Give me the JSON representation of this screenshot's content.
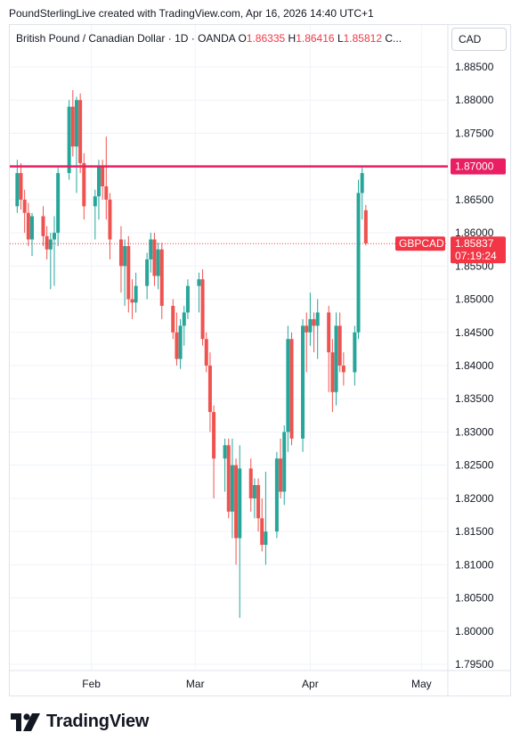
{
  "header": {
    "credit": "PoundSterlingLive created with TradingView.com, Apr 16, 2026 14:40 UTC+1"
  },
  "legend": {
    "symbol": "British Pound / Canadian Dollar · 1D · OANDA",
    "open_label": "O",
    "open_value": "1.86335",
    "high_label": "H",
    "high_value": "1.86416",
    "low_label": "L",
    "low_value": "1.85812",
    "close_label": "C..."
  },
  "currency": "CAD",
  "price_line": {
    "value": 1.87,
    "label": "1.87000",
    "color": "#e91e63"
  },
  "last_price": {
    "ticker": "GBPCAD",
    "value": 1.85837,
    "label": "1.85837",
    "countdown": "07:19:24",
    "color": "#f23645"
  },
  "colors": {
    "up": "#26a69a",
    "down": "#ef5350",
    "grid": "#f0f3fa",
    "text": "#131722"
  },
  "logo": {
    "text": "TradingView"
  },
  "chart_data": {
    "type": "candlestick",
    "title": "British Pound / Canadian Dollar · 1D · OANDA",
    "ylim": [
      1.795,
      1.885
    ],
    "y_ticks": [
      "1.88500",
      "1.88000",
      "1.87500",
      "1.87000",
      "1.86500",
      "1.86000",
      "1.85500",
      "1.85000",
      "1.84500",
      "1.84000",
      "1.83500",
      "1.83000",
      "1.82500",
      "1.82000",
      "1.81500",
      "1.81000",
      "1.80500",
      "1.80000",
      "1.79500"
    ],
    "x_ticks": [
      {
        "label": "Feb",
        "x": "2026-02-01"
      },
      {
        "label": "Mar",
        "x": "2026-03-01"
      },
      {
        "label": "Apr",
        "x": "2026-04-01"
      },
      {
        "label": "May",
        "x": "2026-05-01"
      }
    ],
    "grid": true,
    "candles": [
      [
        "2026-01-12",
        1.864,
        1.871,
        1.863,
        1.869
      ],
      [
        "2026-01-13",
        1.869,
        1.8705,
        1.8635,
        1.865
      ],
      [
        "2026-01-14",
        1.865,
        1.8665,
        1.86,
        1.863
      ],
      [
        "2026-01-15",
        1.863,
        1.8645,
        1.858,
        1.859
      ],
      [
        "2026-01-16",
        1.859,
        1.863,
        1.8565,
        1.8625
      ],
      [
        "2026-01-19",
        1.8625,
        1.864,
        1.858,
        1.8595
      ],
      [
        "2026-01-20",
        1.8595,
        1.861,
        1.856,
        1.8575
      ],
      [
        "2026-01-21",
        1.8575,
        1.86,
        1.8515,
        1.859
      ],
      [
        "2026-01-22",
        1.859,
        1.8625,
        1.852,
        1.86
      ],
      [
        "2026-01-23",
        1.86,
        1.87,
        1.858,
        1.869
      ],
      [
        "2026-01-26",
        1.869,
        1.88,
        1.868,
        1.879
      ],
      [
        "2026-01-27",
        1.879,
        1.8815,
        1.8715,
        1.873
      ],
      [
        "2026-01-28",
        1.873,
        1.8805,
        1.866,
        1.88
      ],
      [
        "2026-01-29",
        1.88,
        1.881,
        1.869,
        1.8705
      ],
      [
        "2026-01-30",
        1.8705,
        1.872,
        1.862,
        1.864
      ],
      [
        "2026-02-02",
        1.864,
        1.8665,
        1.859,
        1.8655
      ],
      [
        "2026-02-03",
        1.8655,
        1.871,
        1.862,
        1.87
      ],
      [
        "2026-02-04",
        1.87,
        1.871,
        1.865,
        1.867
      ],
      [
        "2026-02-05",
        1.867,
        1.8745,
        1.862,
        1.865
      ],
      [
        "2026-02-06",
        1.865,
        1.866,
        1.856,
        1.859
      ],
      [
        "2026-02-09",
        1.859,
        1.861,
        1.851,
        1.855
      ],
      [
        "2026-02-10",
        1.855,
        1.859,
        1.849,
        1.858
      ],
      [
        "2026-02-11",
        1.858,
        1.8595,
        1.848,
        1.85
      ],
      [
        "2026-02-12",
        1.85,
        1.853,
        1.847,
        1.8495
      ],
      [
        "2026-02-13",
        1.8495,
        1.854,
        1.848,
        1.852
      ],
      [
        "2026-02-16",
        1.852,
        1.857,
        1.85,
        1.856
      ],
      [
        "2026-02-17",
        1.856,
        1.86,
        1.854,
        1.859
      ],
      [
        "2026-02-18",
        1.859,
        1.86,
        1.852,
        1.8535
      ],
      [
        "2026-02-19",
        1.8535,
        1.8585,
        1.8515,
        1.8575
      ],
      [
        "2026-02-20",
        1.8575,
        1.8585,
        1.847,
        1.849
      ],
      [
        "2026-02-23",
        1.849,
        1.85,
        1.844,
        1.845
      ],
      [
        "2026-02-24",
        1.845,
        1.848,
        1.84,
        1.841
      ],
      [
        "2026-02-25",
        1.841,
        1.847,
        1.8395,
        1.846
      ],
      [
        "2026-02-26",
        1.846,
        1.849,
        1.843,
        1.848
      ],
      [
        "2026-02-27",
        1.848,
        1.853,
        1.847,
        1.852
      ],
      [
        "2026-03-02",
        1.852,
        1.854,
        1.848,
        1.853
      ],
      [
        "2026-03-03",
        1.853,
        1.8545,
        1.843,
        1.844
      ],
      [
        "2026-03-04",
        1.844,
        1.845,
        1.839,
        1.84
      ],
      [
        "2026-03-05",
        1.84,
        1.842,
        1.83,
        1.833
      ],
      [
        "2026-03-06",
        1.833,
        1.834,
        1.82,
        1.826
      ],
      [
        "2026-03-09",
        1.826,
        1.829,
        1.821,
        1.828
      ],
      [
        "2026-03-10",
        1.828,
        1.829,
        1.817,
        1.818
      ],
      [
        "2026-03-11",
        1.818,
        1.829,
        1.814,
        1.825
      ],
      [
        "2026-03-12",
        1.825,
        1.826,
        1.81,
        1.814
      ],
      [
        "2026-03-13",
        1.814,
        1.828,
        1.802,
        1.8245
      ],
      [
        "2026-03-16",
        1.8245,
        1.826,
        1.818,
        1.82
      ],
      [
        "2026-03-17",
        1.82,
        1.823,
        1.817,
        1.822
      ],
      [
        "2026-03-18",
        1.822,
        1.823,
        1.815,
        1.817
      ],
      [
        "2026-03-19",
        1.817,
        1.82,
        1.812,
        1.813
      ],
      [
        "2026-03-20",
        1.813,
        1.824,
        1.81,
        1.815
      ],
      [
        "2026-03-23",
        1.815,
        1.827,
        1.814,
        1.826
      ],
      [
        "2026-03-24",
        1.826,
        1.829,
        1.82,
        1.821
      ],
      [
        "2026-03-25",
        1.821,
        1.831,
        1.819,
        1.83
      ],
      [
        "2026-03-26",
        1.83,
        1.846,
        1.827,
        1.844
      ],
      [
        "2026-03-27",
        1.844,
        1.845,
        1.828,
        1.829
      ],
      [
        "2026-03-30",
        1.829,
        1.847,
        1.827,
        1.846
      ],
      [
        "2026-03-31",
        1.846,
        1.848,
        1.839,
        1.845
      ],
      [
        "2026-04-01",
        1.845,
        1.851,
        1.843,
        1.847
      ],
      [
        "2026-04-02",
        1.847,
        1.848,
        1.842,
        1.846
      ],
      [
        "2026-04-03",
        1.846,
        1.85,
        1.841,
        1.848
      ],
      [
        "2026-04-06",
        1.848,
        1.849,
        1.836,
        1.842
      ],
      [
        "2026-04-07",
        1.842,
        1.844,
        1.833,
        1.836
      ],
      [
        "2026-04-08",
        1.836,
        1.848,
        1.834,
        1.846
      ],
      [
        "2026-04-09",
        1.846,
        1.848,
        1.839,
        1.84
      ],
      [
        "2026-04-10",
        1.84,
        1.842,
        1.837,
        1.839
      ],
      [
        "2026-04-13",
        1.839,
        1.846,
        1.837,
        1.845
      ],
      [
        "2026-04-14",
        1.845,
        1.868,
        1.844,
        1.866
      ],
      [
        "2026-04-15",
        1.866,
        1.87,
        1.862,
        1.869
      ],
      [
        "2026-04-16",
        1.8634,
        1.8642,
        1.8581,
        1.8584
      ]
    ]
  }
}
